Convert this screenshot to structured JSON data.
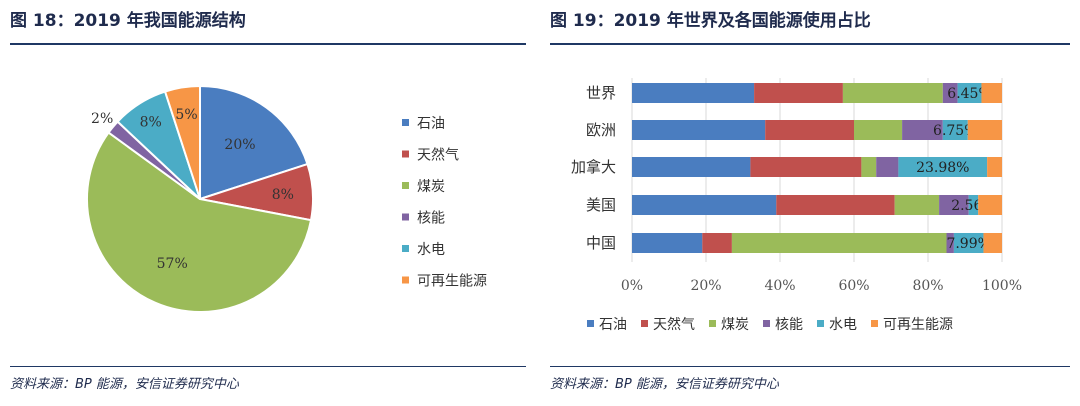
{
  "left_panel": {
    "title": "图 18：2019 年我国能源结构",
    "source": "资料来源：BP 能源，安信证券研究中心"
  },
  "right_panel": {
    "title": "图 19：2019 年世界及各国能源使用占比",
    "source": "资料来源：BP 能源，安信证券研究中心"
  },
  "colors": {
    "石油": "#4a7dc0",
    "天然气": "#c0504d",
    "煤炭": "#9bbb59",
    "核能": "#8064a2",
    "水电": "#4bacc6",
    "可再生能源": "#f79646"
  },
  "chart_data": [
    {
      "type": "pie",
      "title": "2019 年我国能源结构",
      "categories": [
        "石油",
        "天然气",
        "煤炭",
        "核能",
        "水电",
        "可再生能源"
      ],
      "values": [
        20,
        8,
        57,
        2,
        8,
        5
      ],
      "labels": [
        "20%",
        "8%",
        "57%",
        "2%",
        "8%",
        "5%"
      ],
      "legend": "right"
    },
    {
      "type": "bar",
      "orientation": "horizontal",
      "stacked": true,
      "title": "2019 年世界及各国能源使用占比",
      "categories": [
        "世界",
        "欧洲",
        "加拿大",
        "美国",
        "中国"
      ],
      "series": [
        {
          "name": "石油",
          "values": [
            33,
            36,
            32,
            39,
            19
          ]
        },
        {
          "name": "天然气",
          "values": [
            24,
            24,
            30,
            32,
            8
          ]
        },
        {
          "name": "煤炭",
          "values": [
            27,
            13,
            4,
            12,
            58
          ]
        },
        {
          "name": "核能",
          "values": [
            4,
            11,
            6,
            8,
            2
          ]
        },
        {
          "name": "水电",
          "values": [
            6.45,
            6.75,
            23.98,
            2.56,
            7.99
          ]
        },
        {
          "name": "可再生能源",
          "values": [
            5.55,
            9.25,
            4.02,
            6.44,
            5.01
          ]
        }
      ],
      "annotations": [
        "6.45%",
        "6.75%",
        "23.98%",
        "2.56%",
        "7.99%"
      ],
      "annotation_series": "水电",
      "xlim": [
        0,
        100
      ],
      "x_ticks": [
        "0%",
        "20%",
        "40%",
        "60%",
        "80%",
        "100%"
      ],
      "legend": "bottom"
    }
  ]
}
